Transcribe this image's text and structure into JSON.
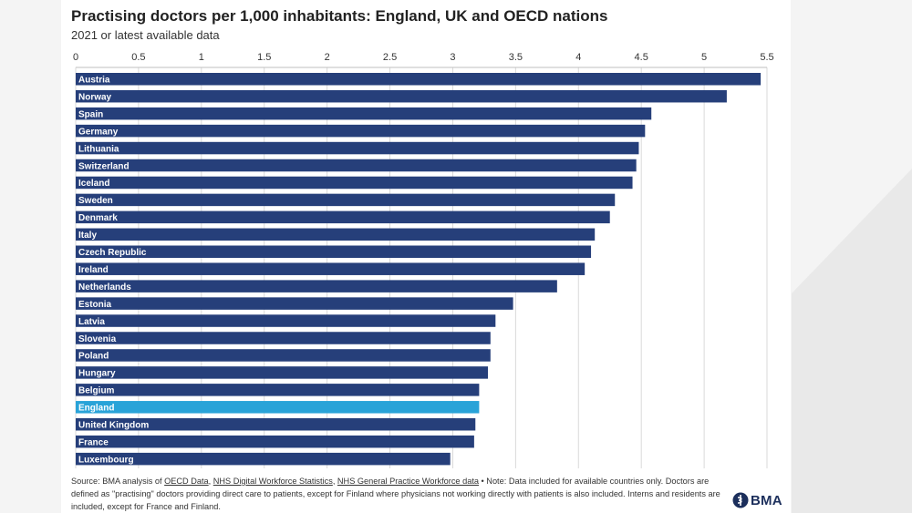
{
  "chart_data": {
    "type": "bar",
    "orientation": "horizontal",
    "title": "Practising doctors per 1,000 inhabitants: England, UK and OECD nations",
    "subtitle": "2021 or latest available data",
    "categories": [
      "Austria",
      "Norway",
      "Spain",
      "Germany",
      "Lithuania",
      "Switzerland",
      "Iceland",
      "Sweden",
      "Denmark",
      "Italy",
      "Czech Republic",
      "Ireland",
      "Netherlands",
      "Estonia",
      "Latvia",
      "Slovenia",
      "Poland",
      "Hungary",
      "Belgium",
      "England",
      "United Kingdom",
      "France",
      "Luxembourg"
    ],
    "values": [
      5.45,
      5.18,
      4.58,
      4.53,
      4.48,
      4.46,
      4.43,
      4.29,
      4.25,
      4.13,
      4.1,
      4.05,
      3.83,
      3.48,
      3.34,
      3.3,
      3.3,
      3.28,
      3.21,
      3.21,
      3.18,
      3.17,
      2.98
    ],
    "highlight": "England",
    "xlim": [
      0,
      5.5
    ],
    "xticks": [
      "0",
      "0.5",
      "1",
      "1.5",
      "2",
      "2.5",
      "3",
      "3.5",
      "4",
      "4.5",
      "5",
      "5.5"
    ],
    "grid": true,
    "colors": {
      "bar": "#263f7a",
      "highlight": "#29a3d8",
      "grid": "#d9d9d9"
    }
  },
  "footnote": {
    "source_prefix": "Source: BMA analysis of ",
    "link1": "OECD Data",
    "sep1": ", ",
    "link2": "NHS Digital Workforce Statistics",
    "sep2": ", ",
    "link3": "NHS General Practice Workforce data",
    "rest": " • Note: Data included for available countries only. Doctors are defined as \"practising\" doctors providing direct care to patients, except for Finland where physicians not working directly with patients is also included. Interns and residents are included, except for France and Finland."
  },
  "logo": {
    "text": "BMA",
    "icon": "bma-snake-icon"
  }
}
